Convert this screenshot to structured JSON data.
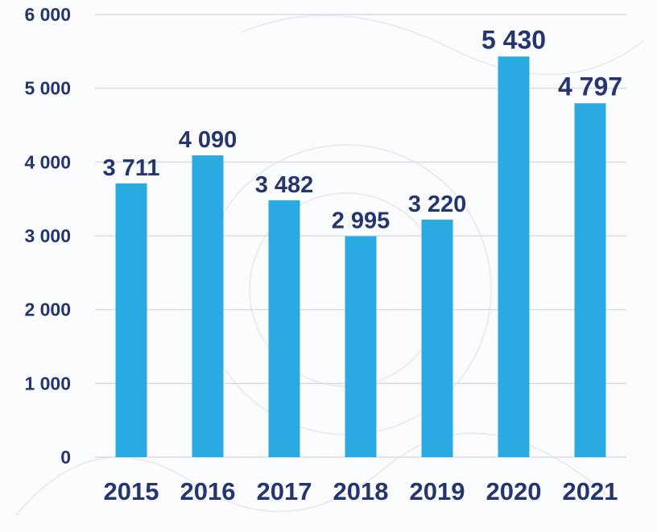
{
  "chart_data": {
    "type": "bar",
    "categories": [
      "2015",
      "2016",
      "2017",
      "2018",
      "2019",
      "2020",
      "2021"
    ],
    "values": [
      3711,
      4090,
      3482,
      2995,
      3220,
      5430,
      4797
    ],
    "value_labels": [
      "3 711",
      "4 090",
      "3 482",
      "2 995",
      "3 220",
      "5 430",
      "4 797"
    ],
    "yticks": [
      0,
      1000,
      2000,
      3000,
      4000,
      5000,
      6000
    ],
    "ytick_labels": [
      "0",
      "1 000",
      "2 000",
      "3 000",
      "4 000",
      "5 000",
      "6 000"
    ],
    "ylim": [
      0,
      6000
    ],
    "grid": true,
    "legend": false,
    "colors": {
      "bar": "#29abe2",
      "text": "#25366f",
      "grid": "#d9dce3",
      "background": "#fbfcfe"
    }
  }
}
